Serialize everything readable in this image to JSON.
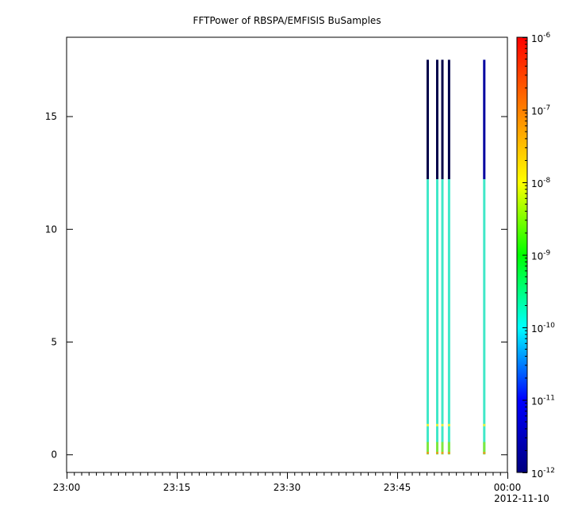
{
  "chart_data": {
    "type": "heatmap",
    "title": "FFTPower of RBSPA/EMFISIS  BuSamples",
    "xlabel": "",
    "ylabel": "",
    "x_tick_labels": [
      "23:00",
      "23:15",
      "23:30",
      "23:45",
      "00:00"
    ],
    "x_tick_minutes": [
      0,
      15,
      30,
      45,
      60
    ],
    "x_date_label": "2012-11-10",
    "x_range_minutes": [
      0,
      60
    ],
    "y_tick_labels": [
      "0",
      "5",
      "10",
      "15"
    ],
    "y_tick_values": [
      0,
      5,
      10,
      15
    ],
    "ylim": [
      -0.8,
      18.5
    ],
    "colorbar": {
      "scale": "log",
      "range": [
        1e-12,
        1e-06
      ],
      "tick_base": "10",
      "tick_exponents": [
        "-12",
        "-11",
        "-10",
        "-9",
        "-8",
        "-7",
        "-6"
      ],
      "colors": [
        "#00007f",
        "#0000ff",
        "#00ffff",
        "#00ff00",
        "#ffff00",
        "#ff7f00",
        "#ff0000"
      ]
    },
    "series": [
      {
        "time_minutes": 49.1,
        "y_top": 17.5,
        "segments": [
          {
            "y0": 12.2,
            "y1": 17.5,
            "color": "#00004a"
          },
          {
            "y0": 0.0,
            "y1": 12.2,
            "color": "#40e8c8"
          }
        ]
      },
      {
        "time_minutes": 50.4,
        "y_top": 17.5,
        "segments": [
          {
            "y0": 12.2,
            "y1": 17.5,
            "color": "#00004a"
          },
          {
            "y0": 0.0,
            "y1": 12.2,
            "color": "#40e8c8"
          }
        ]
      },
      {
        "time_minutes": 51.1,
        "y_top": 17.5,
        "segments": [
          {
            "y0": 12.2,
            "y1": 17.5,
            "color": "#00004a"
          },
          {
            "y0": 0.0,
            "y1": 12.2,
            "color": "#40e8c8"
          }
        ]
      },
      {
        "time_minutes": 52.0,
        "y_top": 17.5,
        "segments": [
          {
            "y0": 12.2,
            "y1": 17.5,
            "color": "#00004a"
          },
          {
            "y0": 0.0,
            "y1": 12.2,
            "color": "#40e8c8"
          }
        ]
      },
      {
        "time_minutes": 56.8,
        "y_top": 17.5,
        "segments": [
          {
            "y0": 12.2,
            "y1": 17.5,
            "color": "#0000a0"
          },
          {
            "y0": 0.0,
            "y1": 12.2,
            "color": "#40e8c8"
          }
        ]
      }
    ]
  }
}
